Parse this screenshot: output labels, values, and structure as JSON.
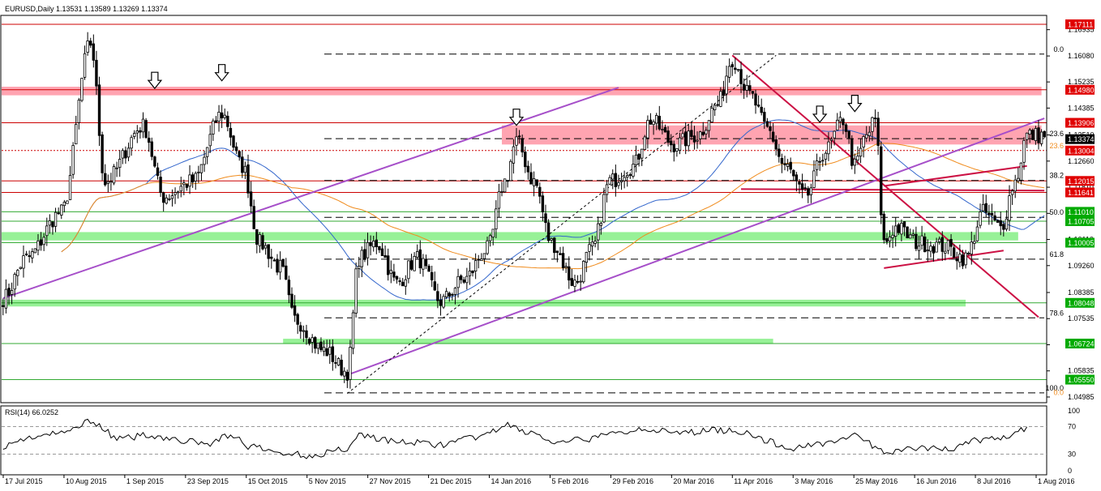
{
  "header": {
    "symbol_line": "EURUSD,Daily  1.13531 1.13589 1.13269 1.13374"
  },
  "colors": {
    "background": "#ffffff",
    "candle": "#000000",
    "resistance_line": "#cc0000",
    "support_line": "#33aa33",
    "resistance_zone": "#ff9aa8",
    "support_zone": "#8cf08c",
    "channel": "#a64fc9",
    "wedge": "#cc1144",
    "ma_fast": "#3366cc",
    "ma_slow": "#f08c1e",
    "tag_red": "#e00000",
    "tag_green": "#00aa00",
    "tag_black": "#000000"
  },
  "chart_data": [
    {
      "type": "candlestick",
      "title": "EURUSD,Daily",
      "ohlc_last": {
        "open": 1.13531,
        "high": 1.13589,
        "low": 1.13269,
        "close": 1.13374
      },
      "ylim": [
        1.048,
        1.174
      ],
      "y_ticks": [
        1.16935,
        1.1608,
        1.15235,
        1.14385,
        1.1351,
        1.1266,
        1.1181,
        1.1096,
        1.1011,
        1.0926,
        1.08385,
        1.07535,
        1.06685,
        1.05835,
        1.04985
      ],
      "x_labels": [
        "17 Jul 2015",
        "10 Aug 2015",
        "1 Sep 2015",
        "23 Sep 2015",
        "15 Oct 2015",
        "5 Nov 2015",
        "27 Nov 2015",
        "21 Dec 2015",
        "14 Jan 2016",
        "5 Feb 2016",
        "29 Feb 2016",
        "20 Mar 2016",
        "11 Apr 2016",
        "3 May 2016",
        "25 May 2016",
        "16 Jun 2016",
        "8 Jul 2016",
        "1 Aug 2016"
      ],
      "price_anchors": [
        [
          0,
          1.082
        ],
        [
          8,
          1.095
        ],
        [
          20,
          1.11
        ],
        [
          30,
          1.165
        ],
        [
          35,
          1.12
        ],
        [
          48,
          1.138
        ],
        [
          55,
          1.115
        ],
        [
          65,
          1.12
        ],
        [
          75,
          1.142
        ],
        [
          82,
          1.125
        ],
        [
          88,
          1.1
        ],
        [
          95,
          1.092
        ],
        [
          100,
          1.075
        ],
        [
          110,
          1.065
        ],
        [
          118,
          1.058
        ],
        [
          122,
          1.095
        ],
        [
          128,
          1.1
        ],
        [
          135,
          1.087
        ],
        [
          142,
          1.095
        ],
        [
          150,
          1.081
        ],
        [
          158,
          1.088
        ],
        [
          166,
          1.098
        ],
        [
          172,
          1.12
        ],
        [
          176,
          1.133
        ],
        [
          182,
          1.12
        ],
        [
          188,
          1.1
        ],
        [
          196,
          1.087
        ],
        [
          202,
          1.098
        ],
        [
          208,
          1.12
        ],
        [
          216,
          1.125
        ],
        [
          222,
          1.14
        ],
        [
          230,
          1.132
        ],
        [
          238,
          1.135
        ],
        [
          245,
          1.145
        ],
        [
          250,
          1.16
        ],
        [
          256,
          1.148
        ],
        [
          262,
          1.137
        ],
        [
          268,
          1.125
        ],
        [
          275,
          1.115
        ],
        [
          282,
          1.13
        ],
        [
          288,
          1.14
        ],
        [
          292,
          1.125
        ],
        [
          296,
          1.135
        ],
        [
          299,
          1.14
        ],
        [
          302,
          1.1
        ],
        [
          306,
          1.105
        ],
        [
          314,
          1.1
        ],
        [
          322,
          1.099
        ],
        [
          330,
          1.095
        ],
        [
          336,
          1.11
        ],
        [
          342,
          1.105
        ],
        [
          347,
          1.12
        ],
        [
          351,
          1.135
        ]
      ],
      "horizontal_levels": [
        {
          "value": 1.17111,
          "label": "1.17111",
          "kind": "resistance",
          "tag": "red"
        },
        {
          "value": 1.1498,
          "label": "1.14980",
          "kind": "resistance",
          "tag": "red"
        },
        {
          "value": 1.13906,
          "label": "1.13906",
          "kind": "resistance",
          "tag": "red"
        },
        {
          "value": 1.13004,
          "label": "1.13004",
          "kind": "current-dotted",
          "tag": "red"
        },
        {
          "value": 1.12015,
          "label": "1.12015",
          "kind": "resistance",
          "tag": "red"
        },
        {
          "value": 1.11641,
          "label": "1.11641",
          "kind": "resistance",
          "tag": "red"
        },
        {
          "value": 1.1101,
          "label": "1.11010",
          "kind": "support",
          "tag": "green"
        },
        {
          "value": 1.10705,
          "label": "1.10705",
          "kind": "support",
          "tag": "green"
        },
        {
          "value": 1.10005,
          "label": "1.10005",
          "kind": "support",
          "tag": "green"
        },
        {
          "value": 1.08048,
          "label": "1.08048",
          "kind": "support",
          "tag": "green"
        },
        {
          "value": 1.06724,
          "label": "1.06724",
          "kind": "support",
          "tag": "green"
        },
        {
          "value": 1.0555,
          "label": "1.05550",
          "kind": "support",
          "tag": "green"
        }
      ],
      "current_price": {
        "value": 1.13374,
        "label": "1.13374"
      },
      "fibonacci": [
        {
          "label": "0.0",
          "value": 1.1614
        },
        {
          "label": "23.6",
          "value": 1.1339
        },
        {
          "label": "23.6",
          "value": 1.13
        },
        {
          "label": "38.2",
          "value": 1.1203
        },
        {
          "label": "50.0",
          "value": 1.1083
        },
        {
          "label": "61.8",
          "value": 1.0947
        },
        {
          "label": "78.6",
          "value": 1.0756
        },
        {
          "label": "100.0",
          "value": 1.0512
        },
        {
          "label": "0.0",
          "value": 1.0497
        }
      ],
      "zones": [
        {
          "kind": "resistance",
          "from_bar": 0,
          "to_bar": 356,
          "low": 1.148,
          "high": 1.1508
        },
        {
          "kind": "resistance",
          "from_bar": 171,
          "to_bar": 356,
          "low": 1.132,
          "high": 1.1382
        },
        {
          "kind": "support",
          "from_bar": 0,
          "to_bar": 348,
          "low": 1.1008,
          "high": 1.1035
        },
        {
          "kind": "support",
          "from_bar": 0,
          "to_bar": 330,
          "low": 1.0793,
          "high": 1.0815
        },
        {
          "kind": "support",
          "from_bar": 96,
          "to_bar": 264,
          "low": 1.0671,
          "high": 1.0688
        }
      ],
      "trendlines": [
        {
          "kind": "channel",
          "from": [
            0,
            1.082
          ],
          "to": [
            211,
            1.1505
          ]
        },
        {
          "kind": "channel",
          "from": [
            118,
            1.057
          ],
          "to": [
            357,
            1.1405
          ]
        },
        {
          "kind": "wedge",
          "from": [
            250,
            1.161
          ],
          "to": [
            355,
            1.0758
          ]
        },
        {
          "kind": "wedge",
          "from": [
            253,
            1.1175
          ],
          "to": [
            357,
            1.117
          ]
        },
        {
          "kind": "wedge",
          "from": [
            302,
            1.0918
          ],
          "to": [
            343,
            1.0975
          ]
        },
        {
          "kind": "wedge",
          "from": [
            302,
            1.1185
          ],
          "to": [
            351,
            1.125
          ]
        },
        {
          "kind": "dotted",
          "from": [
            118,
            1.051
          ],
          "to": [
            265,
            1.161
          ]
        }
      ],
      "arrows": [
        {
          "bar": 52,
          "price": 1.1555
        },
        {
          "bar": 75,
          "price": 1.158
        },
        {
          "bar": 176,
          "price": 1.1435
        },
        {
          "bar": 280,
          "price": 1.1445
        },
        {
          "bar": 292,
          "price": 1.148
        }
      ]
    },
    {
      "type": "line",
      "title": "RSI(14) 66.0252",
      "ylim": [
        0,
        100
      ],
      "y_ticks": [
        100,
        70,
        30,
        0
      ],
      "levels": [
        70,
        30
      ],
      "last_value": 66.0252,
      "anchors": [
        [
          0,
          42
        ],
        [
          10,
          55
        ],
        [
          20,
          60
        ],
        [
          30,
          78
        ],
        [
          40,
          52
        ],
        [
          50,
          58
        ],
        [
          60,
          50
        ],
        [
          70,
          45
        ],
        [
          78,
          58
        ],
        [
          85,
          40
        ],
        [
          95,
          32
        ],
        [
          105,
          28
        ],
        [
          118,
          38
        ],
        [
          122,
          58
        ],
        [
          135,
          48
        ],
        [
          150,
          44
        ],
        [
          165,
          56
        ],
        [
          172,
          72
        ],
        [
          180,
          62
        ],
        [
          190,
          45
        ],
        [
          200,
          52
        ],
        [
          210,
          60
        ],
        [
          220,
          68
        ],
        [
          230,
          60
        ],
        [
          245,
          65
        ],
        [
          255,
          62
        ],
        [
          262,
          48
        ],
        [
          270,
          38
        ],
        [
          280,
          46
        ],
        [
          292,
          56
        ],
        [
          302,
          34
        ],
        [
          315,
          38
        ],
        [
          325,
          38
        ],
        [
          333,
          50
        ],
        [
          343,
          54
        ],
        [
          351,
          66
        ]
      ]
    }
  ]
}
